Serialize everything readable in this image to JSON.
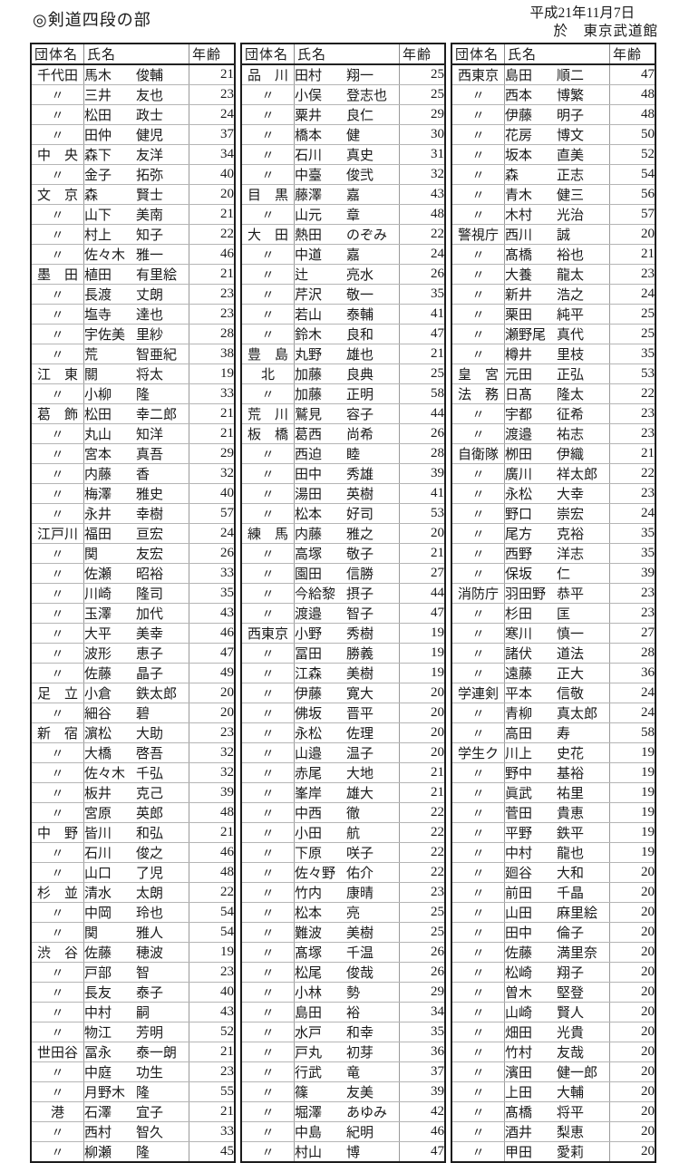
{
  "page": {
    "title": "◎剣道四段の部",
    "date_line1": "平成21年11月7日",
    "date_line2": "於　東京武道館"
  },
  "tables": {
    "headers": [
      "団体名",
      "氏名",
      "年齢"
    ],
    "ditto_mark": "〃",
    "columns": [
      {
        "rows": [
          [
            "千代田",
            "馬木",
            "俊輔",
            21
          ],
          [
            "〃",
            "三井",
            "友也",
            23
          ],
          [
            "〃",
            "松田",
            "政士",
            24
          ],
          [
            "〃",
            "田仲",
            "健児",
            37
          ],
          [
            "中　央",
            "森下",
            "友洋",
            34
          ],
          [
            "〃",
            "金子",
            "拓弥",
            40
          ],
          [
            "文　京",
            "森",
            "賢士",
            20
          ],
          [
            "〃",
            "山下",
            "美南",
            21
          ],
          [
            "〃",
            "村上",
            "知子",
            22
          ],
          [
            "〃",
            "佐々木",
            "雅一",
            46
          ],
          [
            "墨　田",
            "植田",
            "有里絵",
            21
          ],
          [
            "〃",
            "長渡",
            "丈朗",
            23
          ],
          [
            "〃",
            "塩寺",
            "達也",
            23
          ],
          [
            "〃",
            "宇佐美",
            "里紗",
            28
          ],
          [
            "〃",
            "荒",
            "智亜紀",
            38
          ],
          [
            "江　東",
            "關",
            "将太",
            19
          ],
          [
            "〃",
            "小柳",
            "隆",
            33
          ],
          [
            "葛　飾",
            "松田",
            "幸二郎",
            21
          ],
          [
            "〃",
            "丸山",
            "知洋",
            21
          ],
          [
            "〃",
            "宮本",
            "真吾",
            29
          ],
          [
            "〃",
            "内藤",
            "香",
            32
          ],
          [
            "〃",
            "梅澤",
            "雅史",
            40
          ],
          [
            "〃",
            "永井",
            "幸樹",
            57
          ],
          [
            "江戸川",
            "福田",
            "亘宏",
            24
          ],
          [
            "〃",
            "関",
            "友宏",
            26
          ],
          [
            "〃",
            "佐瀬",
            "昭裕",
            33
          ],
          [
            "〃",
            "川崎",
            "隆司",
            35
          ],
          [
            "〃",
            "玉澤",
            "加代",
            43
          ],
          [
            "〃",
            "大平",
            "美幸",
            46
          ],
          [
            "〃",
            "波形",
            "恵子",
            47
          ],
          [
            "〃",
            "佐藤",
            "晶子",
            49
          ],
          [
            "足　立",
            "小倉",
            "鉄太郎",
            20
          ],
          [
            "〃",
            "細谷",
            "碧",
            20
          ],
          [
            "新　宿",
            "濵松",
            "大助",
            23
          ],
          [
            "〃",
            "大橋",
            "啓吾",
            32
          ],
          [
            "〃",
            "佐々木",
            "千弘",
            32
          ],
          [
            "〃",
            "板井",
            "克己",
            39
          ],
          [
            "〃",
            "宮原",
            "英郎",
            48
          ],
          [
            "中　野",
            "皆川",
            "和弘",
            21
          ],
          [
            "〃",
            "石川",
            "俊之",
            46
          ],
          [
            "〃",
            "山口",
            "了児",
            48
          ],
          [
            "杉　並",
            "清水",
            "太朗",
            22
          ],
          [
            "〃",
            "中岡",
            "玲也",
            54
          ],
          [
            "〃",
            "関",
            "雅人",
            54
          ],
          [
            "渋　谷",
            "佐藤",
            "穂波",
            19
          ],
          [
            "〃",
            "戸部",
            "智",
            23
          ],
          [
            "〃",
            "長友",
            "泰子",
            40
          ],
          [
            "〃",
            "中村",
            "嗣",
            43
          ],
          [
            "〃",
            "物江",
            "芳明",
            52
          ],
          [
            "世田谷",
            "冨永",
            "泰一朗",
            21
          ],
          [
            "〃",
            "中庭",
            "功生",
            23
          ],
          [
            "〃",
            "月野木",
            "隆",
            55
          ],
          [
            "港",
            "石澤",
            "宜子",
            21
          ],
          [
            "〃",
            "西村",
            "智久",
            33
          ],
          [
            "〃",
            "柳瀬",
            "隆",
            45
          ]
        ]
      },
      {
        "rows": [
          [
            "品　川",
            "田村",
            "翔一",
            25
          ],
          [
            "〃",
            "小俣",
            "登志也",
            25
          ],
          [
            "〃",
            "粟井",
            "良仁",
            29
          ],
          [
            "〃",
            "橋本",
            "健",
            30
          ],
          [
            "〃",
            "石川",
            "真史",
            31
          ],
          [
            "〃",
            "中臺",
            "俊弐",
            32
          ],
          [
            "目　黒",
            "藤澤",
            "嘉",
            43
          ],
          [
            "〃",
            "山元",
            "章",
            48
          ],
          [
            "大　田",
            "熱田",
            "のぞみ",
            22
          ],
          [
            "〃",
            "中道",
            "嘉",
            24
          ],
          [
            "〃",
            "辻",
            "亮水",
            26
          ],
          [
            "〃",
            "芹沢",
            "敬一",
            35
          ],
          [
            "〃",
            "若山",
            "泰輔",
            41
          ],
          [
            "〃",
            "鈴木",
            "良和",
            47
          ],
          [
            "豊　島",
            "丸野",
            "雄也",
            21
          ],
          [
            "北",
            "加藤",
            "良典",
            25
          ],
          [
            "〃",
            "加藤",
            "正明",
            58
          ],
          [
            "荒　川",
            "鷲見",
            "容子",
            44
          ],
          [
            "板　橋",
            "葛西",
            "尚希",
            26
          ],
          [
            "〃",
            "西迫",
            "睦",
            28
          ],
          [
            "〃",
            "田中",
            "秀雄",
            39
          ],
          [
            "〃",
            "湯田",
            "英樹",
            41
          ],
          [
            "〃",
            "松本",
            "好司",
            53
          ],
          [
            "練　馬",
            "内藤",
            "雅之",
            20
          ],
          [
            "〃",
            "高塚",
            "敬子",
            21
          ],
          [
            "〃",
            "園田",
            "信勝",
            27
          ],
          [
            "〃",
            "今給黎",
            "摂子",
            44
          ],
          [
            "〃",
            "渡邉",
            "智子",
            47
          ],
          [
            "西東京",
            "小野",
            "秀樹",
            19
          ],
          [
            "〃",
            "冨田",
            "勝義",
            19
          ],
          [
            "〃",
            "江森",
            "美樹",
            19
          ],
          [
            "〃",
            "伊藤",
            "寛大",
            20
          ],
          [
            "〃",
            "佛坂",
            "晋平",
            20
          ],
          [
            "〃",
            "永松",
            "佐理",
            20
          ],
          [
            "〃",
            "山邉",
            "温子",
            20
          ],
          [
            "〃",
            "赤尾",
            "大地",
            21
          ],
          [
            "〃",
            "峯岸",
            "雄大",
            21
          ],
          [
            "〃",
            "中西",
            "徹",
            22
          ],
          [
            "〃",
            "小田",
            "航",
            22
          ],
          [
            "〃",
            "下原",
            "咲子",
            22
          ],
          [
            "〃",
            "佐々野",
            "佑介",
            22
          ],
          [
            "〃",
            "竹内",
            "康晴",
            23
          ],
          [
            "〃",
            "松本",
            "亮",
            25
          ],
          [
            "〃",
            "難波",
            "美樹",
            25
          ],
          [
            "〃",
            "髙塚",
            "千温",
            26
          ],
          [
            "〃",
            "松尾",
            "俊哉",
            26
          ],
          [
            "〃",
            "小林",
            "勢",
            29
          ],
          [
            "〃",
            "島田",
            "裕",
            34
          ],
          [
            "〃",
            "水戸",
            "和幸",
            35
          ],
          [
            "〃",
            "戸丸",
            "初芽",
            36
          ],
          [
            "〃",
            "行武",
            "竜",
            37
          ],
          [
            "〃",
            "篠",
            "友美",
            39
          ],
          [
            "〃",
            "堀澤",
            "あゆみ",
            42
          ],
          [
            "〃",
            "中島",
            "紀明",
            46
          ],
          [
            "〃",
            "村山",
            "博",
            47
          ]
        ]
      },
      {
        "rows": [
          [
            "西東京",
            "島田",
            "順二",
            47
          ],
          [
            "〃",
            "西本",
            "博繁",
            48
          ],
          [
            "〃",
            "伊藤",
            "明子",
            48
          ],
          [
            "〃",
            "花房",
            "博文",
            50
          ],
          [
            "〃",
            "坂本",
            "直美",
            52
          ],
          [
            "〃",
            "森",
            "正志",
            54
          ],
          [
            "〃",
            "青木",
            "健三",
            56
          ],
          [
            "〃",
            "木村",
            "光治",
            57
          ],
          [
            "警視庁",
            "西川",
            "誠",
            20
          ],
          [
            "〃",
            "髙橋",
            "裕也",
            21
          ],
          [
            "〃",
            "大養",
            "龍太",
            23
          ],
          [
            "〃",
            "新井",
            "浩之",
            24
          ],
          [
            "〃",
            "栗田",
            "純平",
            25
          ],
          [
            "〃",
            "瀬野尾",
            "真代",
            25
          ],
          [
            "〃",
            "樽井",
            "里枝",
            35
          ],
          [
            "皇　宮",
            "元田",
            "正弘",
            53
          ],
          [
            "法　務",
            "日髙",
            "隆太",
            22
          ],
          [
            "〃",
            "宇都",
            "征希",
            23
          ],
          [
            "〃",
            "渡邉",
            "祐志",
            23
          ],
          [
            "自衛隊",
            "栁田",
            "伊織",
            21
          ],
          [
            "〃",
            "廣川",
            "祥太郎",
            22
          ],
          [
            "〃",
            "永松",
            "大幸",
            23
          ],
          [
            "〃",
            "野口",
            "崇宏",
            24
          ],
          [
            "〃",
            "尾方",
            "克裕",
            35
          ],
          [
            "〃",
            "西野",
            "洋志",
            35
          ],
          [
            "〃",
            "保坂",
            "仁",
            39
          ],
          [
            "消防庁",
            "羽田野",
            "恭平",
            23
          ],
          [
            "〃",
            "杉田",
            "匡",
            23
          ],
          [
            "〃",
            "寒川",
            "慎一",
            27
          ],
          [
            "〃",
            "諸伏",
            "道法",
            28
          ],
          [
            "〃",
            "遠藤",
            "正大",
            36
          ],
          [
            "学連剣",
            "平本",
            "信敬",
            24
          ],
          [
            "〃",
            "青柳",
            "真太郎",
            24
          ],
          [
            "〃",
            "高田",
            "寿",
            58
          ],
          [
            "学生ク",
            "川上",
            "史花",
            19
          ],
          [
            "〃",
            "野中",
            "基裕",
            19
          ],
          [
            "〃",
            "眞武",
            "祐里",
            19
          ],
          [
            "〃",
            "菅田",
            "貴恵",
            19
          ],
          [
            "〃",
            "平野",
            "鉄平",
            19
          ],
          [
            "〃",
            "中村",
            "龍也",
            19
          ],
          [
            "〃",
            "廻谷",
            "大和",
            20
          ],
          [
            "〃",
            "前田",
            "千晶",
            20
          ],
          [
            "〃",
            "山田",
            "麻里絵",
            20
          ],
          [
            "〃",
            "田中",
            "倫子",
            20
          ],
          [
            "〃",
            "佐藤",
            "満里奈",
            20
          ],
          [
            "〃",
            "松崎",
            "翔子",
            20
          ],
          [
            "〃",
            "曽木",
            "堅登",
            20
          ],
          [
            "〃",
            "山崎",
            "賢人",
            20
          ],
          [
            "〃",
            "畑田",
            "光貴",
            20
          ],
          [
            "〃",
            "竹村",
            "友哉",
            20
          ],
          [
            "〃",
            "濱田",
            "健一郎",
            20
          ],
          [
            "〃",
            "上田",
            "大輔",
            20
          ],
          [
            "〃",
            "髙橋",
            "将平",
            20
          ],
          [
            "〃",
            "酒井",
            "梨恵",
            20
          ],
          [
            "〃",
            "甲田",
            "愛莉",
            20
          ]
        ]
      }
    ]
  }
}
